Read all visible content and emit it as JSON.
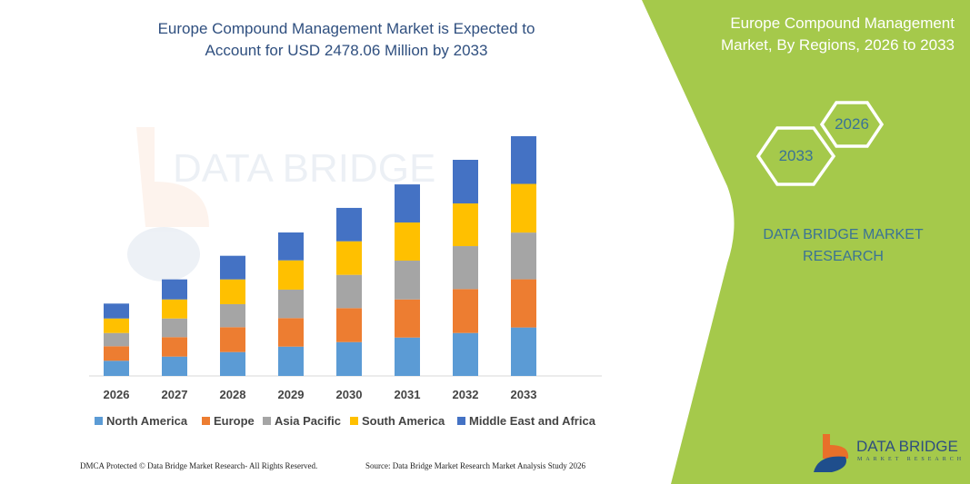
{
  "title_lines": [
    "Europe Compound Management Market is Expected to",
    "Account for USD 2478.06 Million by 2033"
  ],
  "side_panel": {
    "title_lines": [
      "Europe Compound Management",
      "Market, By Regions, 2026 to 2033"
    ],
    "hex_start": "2026",
    "hex_end": "2033",
    "brand_lines": [
      "DATA BRIDGE MARKET",
      "RESEARCH"
    ],
    "logo_text": "DATA BRIDGE",
    "logo_subtext": "MARKET RESEARCH",
    "color": "#a5c94b"
  },
  "footer": {
    "left": "DMCA Protected © Data Bridge Market Research-  All Rights Reserved.",
    "right": "Source: Data Bridge Market Research  Market Analysis Study 2026"
  },
  "watermark": "DATA BRIDGE MARKET RESEARCH",
  "chart_data": {
    "type": "bar",
    "stacked": true,
    "categories": [
      "2026",
      "2027",
      "2028",
      "2029",
      "2030",
      "2031",
      "2032",
      "2033"
    ],
    "series": [
      {
        "name": "North America",
        "color": "#5b9bd5",
        "values": [
          157,
          200,
          247,
          303,
          350,
          397,
          444,
          501
        ]
      },
      {
        "name": "Europe",
        "color": "#ed7d31",
        "values": [
          150,
          201,
          257,
          295,
          351,
          394,
          454,
          498
        ]
      },
      {
        "name": "Asia Pacific",
        "color": "#a5a5a5",
        "values": [
          137,
          193,
          238,
          294,
          344,
          401,
          444,
          483
        ]
      },
      {
        "name": "South America",
        "color": "#ffc000",
        "values": [
          150,
          197,
          256,
          303,
          347,
          394,
          441,
          503
        ]
      },
      {
        "name": "Middle East and Africa",
        "color": "#4472c4",
        "values": [
          154,
          207,
          244,
          288,
          345,
          394,
          451,
          493
        ]
      }
    ],
    "ylim": [
      0,
      2600
    ],
    "grid": false,
    "legend": "bottom"
  }
}
